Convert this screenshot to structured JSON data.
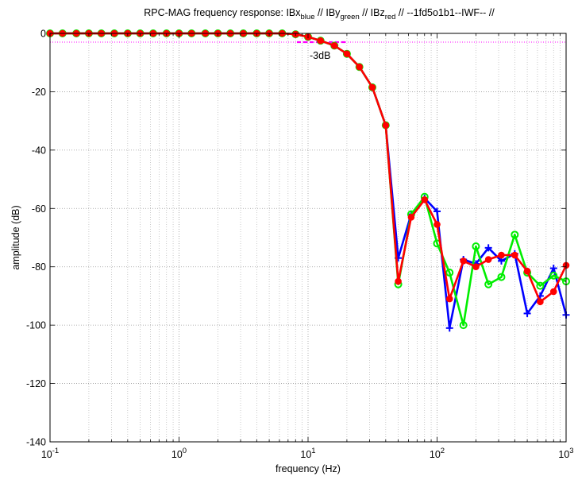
{
  "chart_data": {
    "type": "line",
    "title_parts": {
      "prefix": "RPC-MAG frequency response: IBx",
      "sub1": "blue",
      "mid1": " // IBy",
      "sub2": "green",
      "mid2": " // IBz",
      "sub3": "red",
      "suffix": " // --1fd5o1b1--IWF-- //"
    },
    "xlabel": "frequency (Hz)",
    "ylabel": "amplitude (dB)",
    "x_scale": "log",
    "xlim": [
      0.1,
      1000
    ],
    "ylim": [
      -140,
      0
    ],
    "x_ticks": [
      {
        "value": 0.1,
        "base": "10",
        "exp": "-1"
      },
      {
        "value": 1,
        "base": "10",
        "exp": "0"
      },
      {
        "value": 10,
        "base": "10",
        "exp": "1"
      },
      {
        "value": 100,
        "base": "10",
        "exp": "2"
      },
      {
        "value": 1000,
        "base": "10",
        "exp": "3"
      }
    ],
    "y_ticks": [
      0,
      -20,
      -40,
      -60,
      -80,
      -100,
      -120,
      -140
    ],
    "grid": true,
    "annotation": {
      "text": "-3dB",
      "x": 11,
      "y": -8
    },
    "reference_line": {
      "y": -3,
      "x_start": 0.1,
      "x_end": 1000,
      "color": "#ff00ff",
      "style": "dotted"
    },
    "reference_segment": {
      "y": -3,
      "x_start": 8.2,
      "x_end": 20,
      "color": "#ff00ff",
      "style": "dashed"
    },
    "series": [
      {
        "color": "#0000ff",
        "marker": "plus",
        "x": [
          0.1,
          0.125,
          0.16,
          0.2,
          0.25,
          0.315,
          0.4,
          0.5,
          0.63,
          0.8,
          1,
          1.25,
          1.6,
          2,
          2.5,
          3.15,
          4,
          5,
          6.3,
          8,
          10,
          12.5,
          16,
          20,
          25,
          31.5,
          40,
          50,
          63,
          80,
          100,
          125,
          160,
          200,
          250,
          315,
          400,
          500,
          630,
          800,
          1000
        ],
        "y": [
          0,
          0,
          0,
          0,
          0,
          0,
          0,
          0,
          0,
          0,
          0,
          0,
          0,
          0,
          0,
          0,
          0,
          0,
          0,
          -0.3,
          -1.2,
          -2.5,
          -4.2,
          -7,
          -11.5,
          -18.5,
          -31.5,
          -77,
          -62,
          -56.5,
          -61,
          -101,
          -77.5,
          -79,
          -73.5,
          -78,
          -75.5,
          -96,
          -90,
          -80.5,
          -96.5
        ]
      },
      {
        "color": "#00ee00",
        "marker": "circle",
        "x": [
          0.1,
          0.125,
          0.16,
          0.2,
          0.25,
          0.315,
          0.4,
          0.5,
          0.63,
          0.8,
          1,
          1.25,
          1.6,
          2,
          2.5,
          3.15,
          4,
          5,
          6.3,
          8,
          10,
          12.5,
          16,
          20,
          25,
          31.5,
          40,
          50,
          63,
          80,
          100,
          125,
          160,
          200,
          250,
          315,
          400,
          500,
          630,
          800,
          1000
        ],
        "y": [
          0,
          0,
          0,
          0,
          0,
          0,
          0,
          0,
          0,
          0,
          0,
          0,
          0,
          0,
          0,
          0,
          0,
          0,
          0,
          -0.3,
          -1.2,
          -2.5,
          -4.2,
          -7,
          -11.5,
          -18.5,
          -31.5,
          -86,
          -62,
          -56,
          -72,
          -82,
          -100,
          -73,
          -86,
          -83.5,
          -69,
          -82,
          -86.5,
          -83,
          -85
        ]
      },
      {
        "color": "#ff0000",
        "marker": "dot",
        "x": [
          0.1,
          0.125,
          0.16,
          0.2,
          0.25,
          0.315,
          0.4,
          0.5,
          0.63,
          0.8,
          1,
          1.25,
          1.6,
          2,
          2.5,
          3.15,
          4,
          5,
          6.3,
          8,
          10,
          12.5,
          16,
          20,
          25,
          31.5,
          40,
          50,
          63,
          80,
          100,
          125,
          160,
          200,
          250,
          315,
          400,
          500,
          630,
          800,
          1000
        ],
        "y": [
          0,
          0,
          0,
          0,
          0,
          0,
          0,
          0,
          0,
          0,
          0,
          0,
          0,
          0,
          0,
          0,
          0,
          0,
          0,
          -0.3,
          -1.2,
          -2.5,
          -4.2,
          -7,
          -11.5,
          -18.5,
          -31.5,
          -85,
          -63,
          -57,
          -65.5,
          -91,
          -78,
          -80,
          -77.5,
          -76,
          -76,
          -81.5,
          -92,
          -88.5,
          -79.5
        ]
      }
    ]
  }
}
